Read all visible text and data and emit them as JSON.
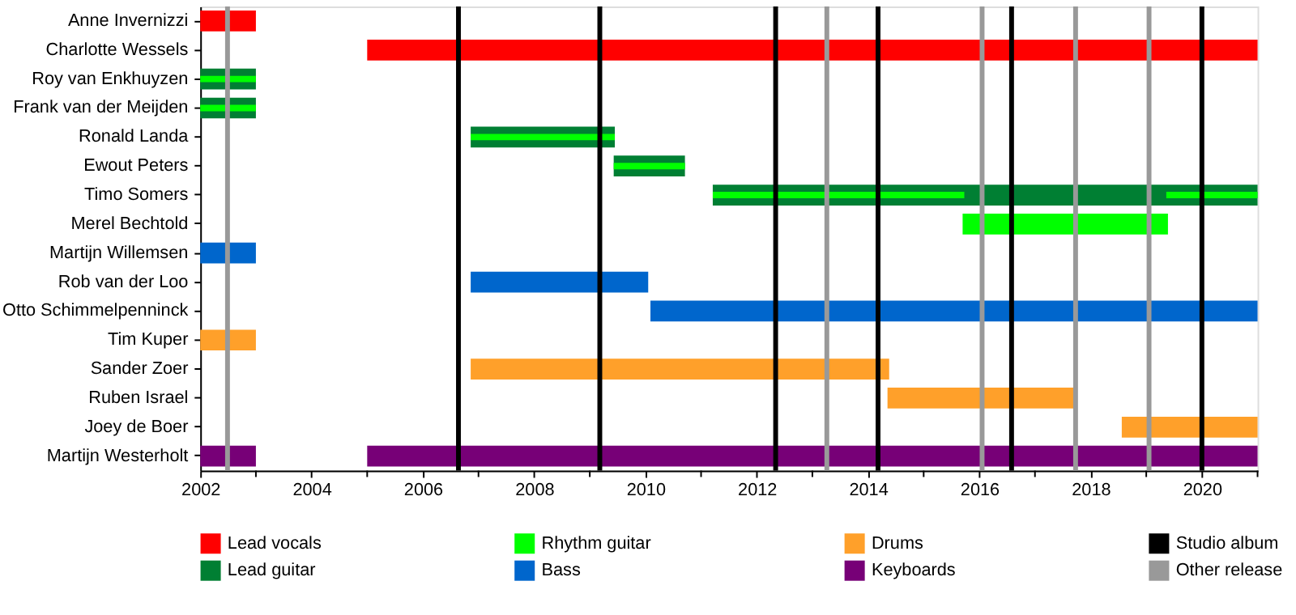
{
  "chart_data": {
    "type": "bar",
    "orientation": "horizontal",
    "categories": [
      "Anne Invernizzi",
      "Charlotte Wessels",
      "Roy van Enkhuyzen",
      "Frank van der Meijden",
      "Ronald Landa",
      "Ewout Peters",
      "Timo Somers",
      "Merel Bechtold",
      "Martijn Willemsen",
      "Rob van der Loo",
      "Otto Schimmelpenninck",
      "Tim Kuper",
      "Sander Zoer",
      "Ruben Israel",
      "Joey de Boer",
      "Martijn Westerholt"
    ],
    "series": [
      {
        "name": "Lead vocals",
        "color": "#ff0000",
        "base": [
          2002,
          2005.0,
          null,
          null,
          null,
          null,
          null,
          null,
          null,
          null,
          null,
          null,
          null,
          null,
          null,
          null
        ],
        "values": [
          1.0,
          16.0,
          null,
          null,
          null,
          null,
          null,
          null,
          null,
          null,
          null,
          null,
          null,
          null,
          null,
          null
        ]
      },
      {
        "name": "Lead guitar",
        "color": "#007f33",
        "base": [
          null,
          null,
          2002,
          2002,
          2006.86,
          2009.43,
          2011.21,
          null,
          null,
          null,
          null,
          null,
          null,
          null,
          null,
          null
        ],
        "values": [
          null,
          null,
          1.0,
          1.0,
          2.59,
          1.28,
          9.79,
          null,
          null,
          null,
          null,
          null,
          null,
          null,
          null,
          null
        ]
      },
      {
        "name": "Rhythm guitar",
        "color": "#00ff00",
        "base": [
          null,
          null,
          2002,
          2002,
          2006.86,
          2009.43,
          2011.21,
          2015.7,
          null,
          null,
          null,
          null,
          null,
          null,
          null,
          null
        ],
        "values": [
          null,
          null,
          1.0,
          1.0,
          2.59,
          1.28,
          4.52,
          3.69,
          null,
          null,
          null,
          null,
          null,
          null,
          null,
          null
        ]
      },
      {
        "color": "#00ff00",
        "base": [
          null,
          null,
          null,
          null,
          null,
          null,
          2019.36,
          null,
          null,
          null,
          null,
          null,
          null,
          null,
          null,
          null
        ],
        "values": [
          null,
          null,
          null,
          null,
          null,
          null,
          1.64,
          null,
          null,
          null,
          null,
          null,
          null,
          null,
          null,
          null
        ]
      },
      {
        "name": "Bass",
        "color": "#0066cc",
        "base": [
          null,
          null,
          null,
          null,
          null,
          null,
          null,
          null,
          2002,
          2006.86,
          2010.09,
          null,
          null,
          null,
          null,
          null
        ],
        "values": [
          null,
          null,
          null,
          null,
          null,
          null,
          null,
          null,
          1.0,
          3.19,
          10.91,
          null,
          null,
          null,
          null,
          null
        ]
      },
      {
        "name": "Drums",
        "color": "#ffa02a",
        "base": [
          null,
          null,
          null,
          null,
          null,
          null,
          null,
          null,
          null,
          null,
          null,
          2002,
          2006.86,
          2014.35,
          2018.56,
          null
        ],
        "values": [
          null,
          null,
          null,
          null,
          null,
          null,
          null,
          null,
          null,
          null,
          null,
          1.0,
          7.52,
          3.39,
          2.44,
          null
        ]
      },
      {
        "name": "Keyboards",
        "color": "#770077",
        "base": [
          null,
          null,
          null,
          null,
          null,
          null,
          null,
          null,
          null,
          null,
          null,
          null,
          null,
          null,
          null,
          2002
        ],
        "values": [
          null,
          null,
          null,
          null,
          null,
          null,
          null,
          null,
          null,
          null,
          null,
          null,
          null,
          null,
          null,
          1.0
        ]
      },
      {
        "color": "#770077",
        "base": [
          null,
          null,
          null,
          null,
          null,
          null,
          null,
          null,
          null,
          null,
          null,
          null,
          null,
          null,
          null,
          2005.0
        ],
        "values": [
          null,
          null,
          null,
          null,
          null,
          null,
          null,
          null,
          null,
          null,
          null,
          null,
          null,
          null,
          null,
          16.0
        ]
      }
    ],
    "ref_lines": [
      {
        "axis": "x",
        "value": 2006.64,
        "label": "Studio album",
        "color": "#000000"
      },
      {
        "axis": "x",
        "value": 2009.18,
        "color": "#000000"
      },
      {
        "axis": "x",
        "value": 2012.34,
        "color": "#000000"
      },
      {
        "axis": "x",
        "value": 2014.18,
        "color": "#000000"
      },
      {
        "axis": "x",
        "value": 2016.58,
        "color": "#000000"
      },
      {
        "axis": "x",
        "value": 2020.0,
        "color": "#000000"
      },
      {
        "axis": "x",
        "value": 2002.49,
        "label": "Other release",
        "color": "#999999"
      },
      {
        "axis": "x",
        "value": 2013.26,
        "color": "#999999"
      },
      {
        "axis": "x",
        "value": 2016.05,
        "color": "#999999"
      },
      {
        "axis": "x",
        "value": 2017.73,
        "color": "#999999"
      },
      {
        "axis": "x",
        "value": 2019.05,
        "color": "#999999"
      }
    ],
    "xlim": [
      2002,
      2021
    ],
    "xticks": [
      2002,
      {
        "value": 2003,
        "label": null
      },
      2004,
      {
        "value": 2005,
        "label": null
      },
      2006,
      {
        "value": 2007,
        "label": null
      },
      2008,
      {
        "value": 2009,
        "label": null
      },
      2010,
      {
        "value": 2011,
        "label": null
      },
      2012,
      {
        "value": 2013,
        "label": null
      },
      2014,
      {
        "value": 2015,
        "label": null
      },
      2016,
      {
        "value": 2017,
        "label": null
      },
      2018,
      {
        "value": 2019,
        "label": null
      },
      2020,
      {
        "value": 2021,
        "label": null
      }
    ],
    "grid": false,
    "legend": "bottom"
  }
}
